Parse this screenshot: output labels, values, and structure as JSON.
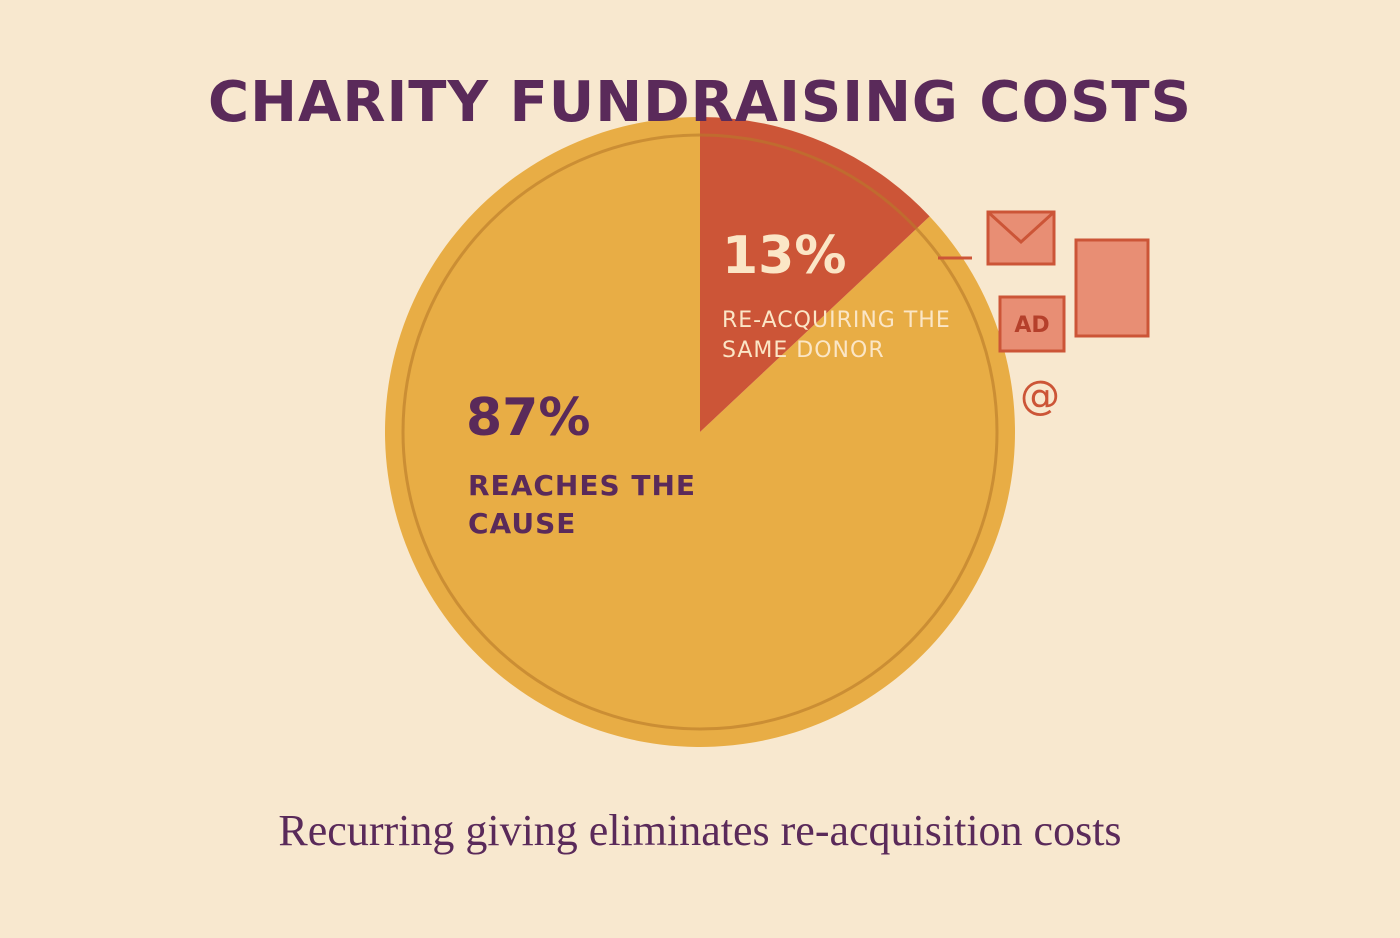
{
  "chart_data": {
    "type": "pie",
    "title": "CHARITY FUNDRAISING COSTS",
    "subtitle": "Recurring giving eliminates re-acquisition costs",
    "categories": [
      "REACHES THE CAUSE",
      "RE-ACQUIRING THE SAME DONOR"
    ],
    "values": [
      87,
      13
    ],
    "value_labels": [
      "87%",
      "13%"
    ],
    "colors": [
      "#e8ad45",
      "#cc5537"
    ],
    "annotations": [
      "AD",
      "@"
    ]
  }
}
